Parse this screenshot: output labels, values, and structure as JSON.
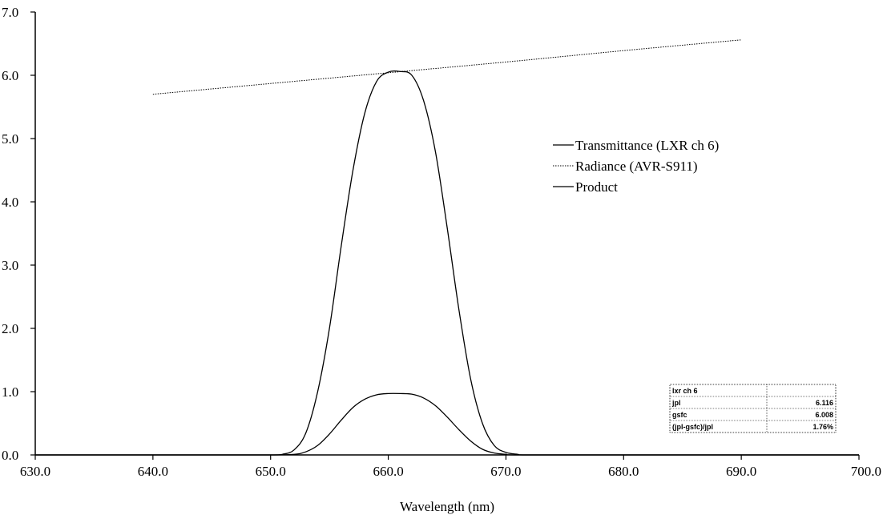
{
  "chart_data": {
    "type": "line",
    "xlabel": "Wavelength (nm)",
    "ylabel": "",
    "xlim": [
      630,
      700
    ],
    "ylim": [
      0,
      7
    ],
    "x_ticks": [
      "630.0",
      "640.0",
      "650.0",
      "660.0",
      "670.0",
      "680.0",
      "690.0",
      "700.0"
    ],
    "y_ticks": [
      "0.0",
      "1.0",
      "2.0",
      "3.0",
      "4.0",
      "5.0",
      "6.0",
      "7.0"
    ],
    "grid": false,
    "legend_position": "right",
    "series": [
      {
        "name": "Transmittance (LXR ch 6)",
        "style": "solid",
        "x": [
          630,
          645,
          650,
          651,
          652,
          653,
          654,
          655,
          656,
          657,
          658,
          659,
          660,
          661,
          662,
          663,
          664,
          665,
          666,
          667,
          668,
          669,
          670,
          671,
          672,
          680,
          700
        ],
        "y": [
          0,
          0,
          0,
          0.01,
          0.08,
          0.35,
          1.0,
          2.0,
          3.3,
          4.5,
          5.4,
          5.9,
          6.05,
          6.06,
          6.0,
          5.6,
          4.8,
          3.6,
          2.3,
          1.2,
          0.5,
          0.15,
          0.04,
          0.01,
          0,
          0,
          0
        ]
      },
      {
        "name": "Radiance (AVR-S911)",
        "style": "dotted",
        "x": [
          640,
          650,
          660,
          670,
          680,
          690
        ],
        "y": [
          5.7,
          5.87,
          6.04,
          6.21,
          6.39,
          6.56
        ]
      },
      {
        "name": "Product",
        "style": "solid",
        "x": [
          630,
          645,
          650,
          652,
          653,
          654,
          655,
          656,
          657,
          658,
          659,
          660,
          661,
          662,
          663,
          664,
          665,
          666,
          667,
          668,
          669,
          670,
          671,
          680,
          700
        ],
        "y": [
          0,
          0,
          0,
          0.01,
          0.05,
          0.15,
          0.33,
          0.55,
          0.75,
          0.88,
          0.95,
          0.97,
          0.97,
          0.96,
          0.9,
          0.78,
          0.6,
          0.4,
          0.22,
          0.09,
          0.03,
          0.01,
          0,
          0,
          0
        ]
      }
    ],
    "table": {
      "title": "lxr ch 6",
      "rows": [
        {
          "label": "jpl",
          "value": "6.116"
        },
        {
          "label": "gsfc",
          "value": "6.008"
        },
        {
          "label": "(jpl-gsfc)/jpl",
          "value": "1.76%"
        }
      ]
    }
  }
}
